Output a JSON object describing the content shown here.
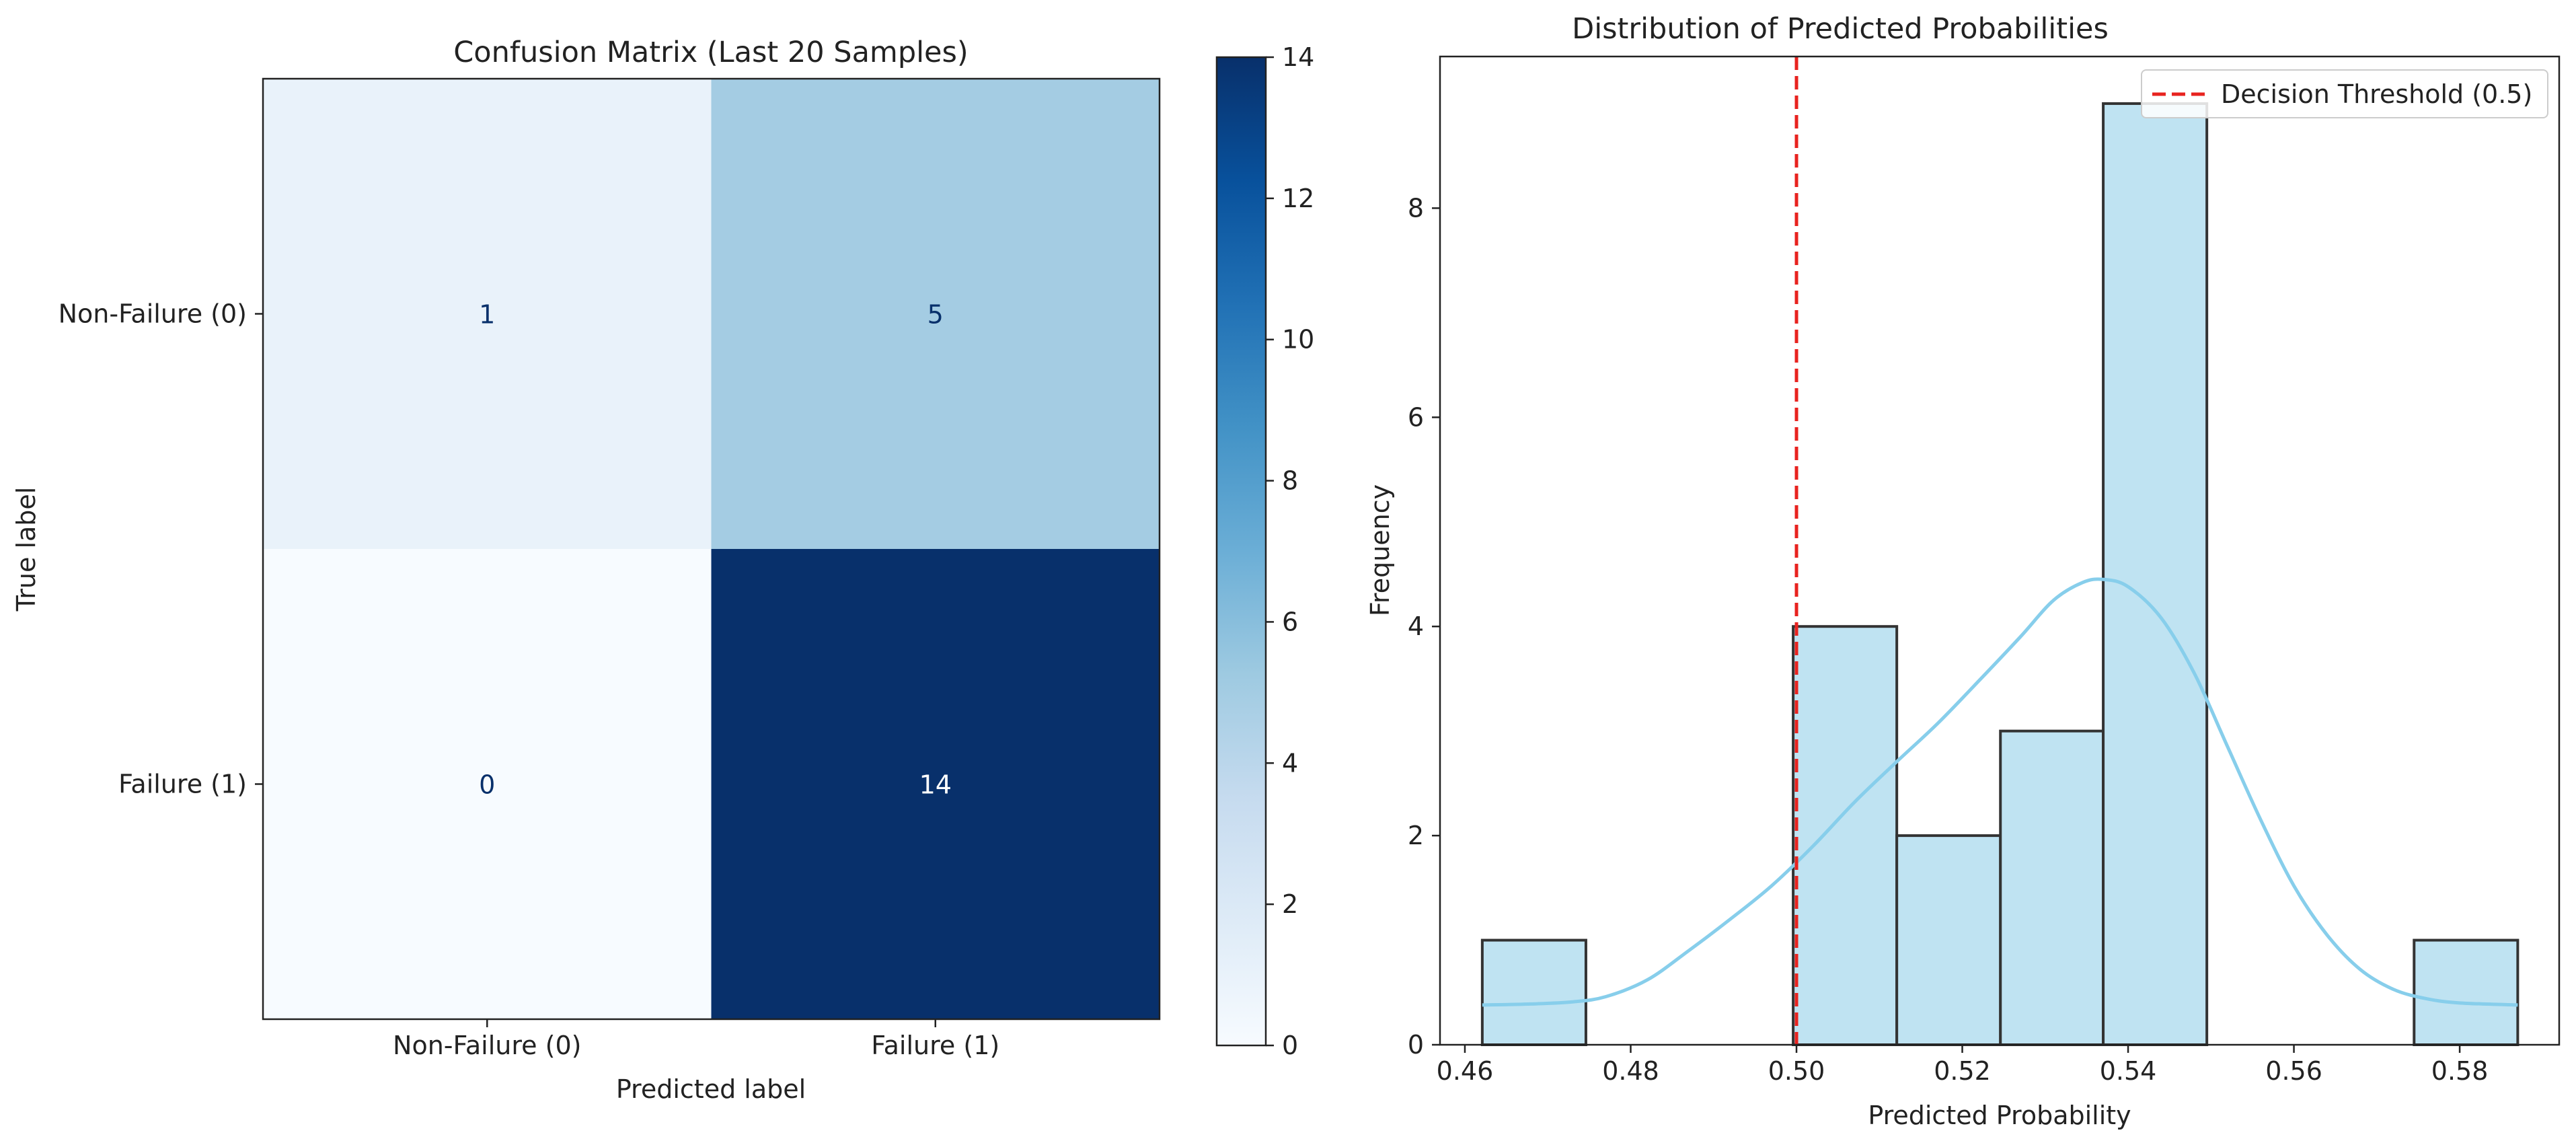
{
  "chart_data": [
    {
      "type": "heatmap",
      "title": "Confusion Matrix (Last 20 Samples)",
      "xlabel": "Predicted label",
      "ylabel": "True label",
      "x_categories": [
        "Non-Failure (0)",
        "Failure (1)"
      ],
      "y_categories": [
        "Non-Failure (0)",
        "Failure (1)"
      ],
      "values": [
        [
          1,
          5
        ],
        [
          0,
          14
        ]
      ],
      "colormap": "Blues",
      "colorbar": {
        "min": 0,
        "max": 14,
        "ticks": [
          0,
          2,
          4,
          6,
          8,
          10,
          12,
          14
        ]
      }
    },
    {
      "type": "bar",
      "subtype": "histogram",
      "title": "Distribution of Predicted Probabilities",
      "xlabel": "Predicted Probability",
      "ylabel": "Frequency",
      "xlim": [
        0.457,
        0.592
      ],
      "ylim": [
        0,
        9.45
      ],
      "xticks": [
        "0.46",
        "0.48",
        "0.50",
        "0.52",
        "0.54",
        "0.56",
        "0.58"
      ],
      "yticks": [
        "0",
        "2",
        "4",
        "6",
        "8"
      ],
      "bins": [
        {
          "start": 0.4621,
          "end": 0.4746,
          "count": 1
        },
        {
          "start": 0.4746,
          "end": 0.4871,
          "count": 0
        },
        {
          "start": 0.4871,
          "end": 0.4996,
          "count": 0
        },
        {
          "start": 0.4996,
          "end": 0.5121,
          "count": 4
        },
        {
          "start": 0.5121,
          "end": 0.5246,
          "count": 2
        },
        {
          "start": 0.5246,
          "end": 0.537,
          "count": 3
        },
        {
          "start": 0.537,
          "end": 0.5495,
          "count": 9
        },
        {
          "start": 0.5495,
          "end": 0.562,
          "count": 0
        },
        {
          "start": 0.562,
          "end": 0.5745,
          "count": 0
        },
        {
          "start": 0.5745,
          "end": 0.587,
          "count": 1
        }
      ],
      "bar_color": "#bfe3f2",
      "kde_color": "#87ceeb",
      "kde_points": [
        [
          0.4621,
          0.38
        ],
        [
          0.468,
          0.39
        ],
        [
          0.473,
          0.41
        ],
        [
          0.477,
          0.46
        ],
        [
          0.482,
          0.62
        ],
        [
          0.487,
          0.9
        ],
        [
          0.492,
          1.2
        ],
        [
          0.497,
          1.52
        ],
        [
          0.502,
          1.9
        ],
        [
          0.507,
          2.32
        ],
        [
          0.512,
          2.7
        ],
        [
          0.517,
          3.07
        ],
        [
          0.522,
          3.48
        ],
        [
          0.527,
          3.9
        ],
        [
          0.531,
          4.25
        ],
        [
          0.5345,
          4.42
        ],
        [
          0.537,
          4.45
        ],
        [
          0.54,
          4.38
        ],
        [
          0.544,
          4.08
        ],
        [
          0.548,
          3.55
        ],
        [
          0.552,
          2.85
        ],
        [
          0.556,
          2.15
        ],
        [
          0.56,
          1.52
        ],
        [
          0.564,
          1.05
        ],
        [
          0.568,
          0.72
        ],
        [
          0.572,
          0.53
        ],
        [
          0.576,
          0.44
        ],
        [
          0.58,
          0.4
        ],
        [
          0.587,
          0.38
        ]
      ],
      "threshold": {
        "value": 0.5,
        "label": "Decision Threshold (0.5)",
        "color": "#e8231f"
      }
    }
  ]
}
